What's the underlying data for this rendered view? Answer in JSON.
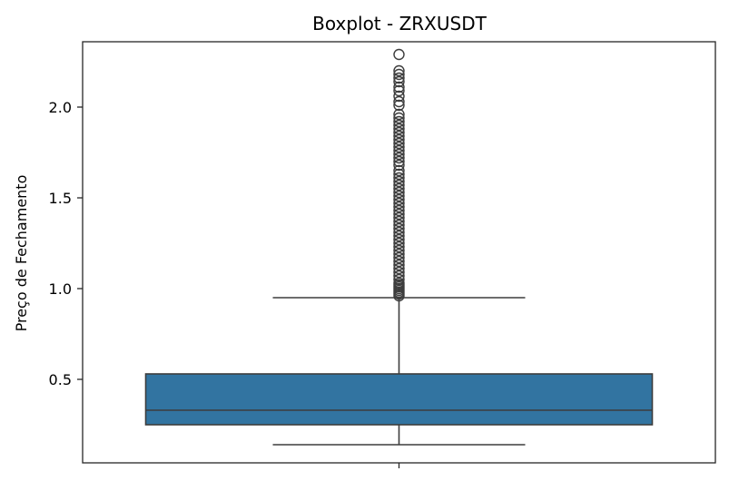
{
  "chart_data": {
    "type": "boxplot",
    "title": "Boxplot - ZRXUSDT",
    "xlabel": "",
    "ylabel": "Preço de Fechamento",
    "ylim": [
      0.04,
      2.36
    ],
    "yticks": [
      0.5,
      1.0,
      1.5,
      2.0
    ],
    "ytick_labels": [
      "0.5",
      "1.0",
      "1.5",
      "2.0"
    ],
    "grid": false,
    "box_color": "#3274a1",
    "line_color": "#3d3d3d",
    "box": {
      "whisker_low": 0.14,
      "q1": 0.25,
      "median": 0.33,
      "q3": 0.53,
      "whisker_high": 0.95
    },
    "outliers": [
      0.96,
      0.97,
      0.98,
      0.99,
      1.0,
      1.01,
      1.02,
      1.03,
      1.05,
      1.07,
      1.09,
      1.11,
      1.13,
      1.15,
      1.17,
      1.19,
      1.21,
      1.23,
      1.25,
      1.27,
      1.29,
      1.31,
      1.33,
      1.35,
      1.37,
      1.39,
      1.41,
      1.43,
      1.45,
      1.47,
      1.49,
      1.51,
      1.53,
      1.55,
      1.57,
      1.59,
      1.61,
      1.63,
      1.65,
      1.68,
      1.7,
      1.72,
      1.74,
      1.76,
      1.78,
      1.8,
      1.82,
      1.84,
      1.86,
      1.88,
      1.9,
      1.92,
      1.94,
      1.96,
      2.01,
      2.03,
      2.06,
      2.09,
      2.11,
      2.14,
      2.16,
      2.18,
      2.2,
      2.29
    ]
  }
}
